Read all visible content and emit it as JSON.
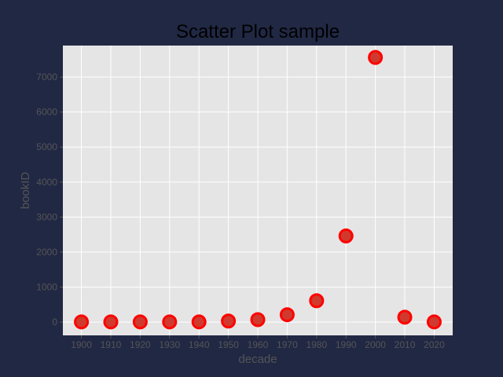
{
  "chart_data": {
    "type": "scatter",
    "title": "Scatter Plot sample",
    "xlabel": "decade",
    "ylabel": "bookID",
    "x": [
      1900,
      1910,
      1920,
      1930,
      1940,
      1950,
      1960,
      1970,
      1980,
      1990,
      2000,
      2010,
      2020
    ],
    "y": [
      5,
      5,
      5,
      5,
      5,
      30,
      70,
      210,
      610,
      2460,
      7560,
      140,
      5
    ],
    "xticks": [
      "1900",
      "1910",
      "1920",
      "1930",
      "1940",
      "1950",
      "1960",
      "1970",
      "1980",
      "1990",
      "2000",
      "2010",
      "2020"
    ],
    "yticks": [
      "0",
      "1000",
      "2000",
      "3000",
      "4000",
      "5000",
      "6000",
      "7000"
    ],
    "xlim": [
      1893.7,
      2026.3
    ],
    "ylim": [
      -380,
      7900
    ],
    "grid": true,
    "colors": {
      "figure_background": "#212844",
      "plot_background": "#e5e5e5",
      "grid": "#ffffff",
      "marker_fill": "#d03a2e",
      "marker_edge": "#ff0000"
    }
  }
}
